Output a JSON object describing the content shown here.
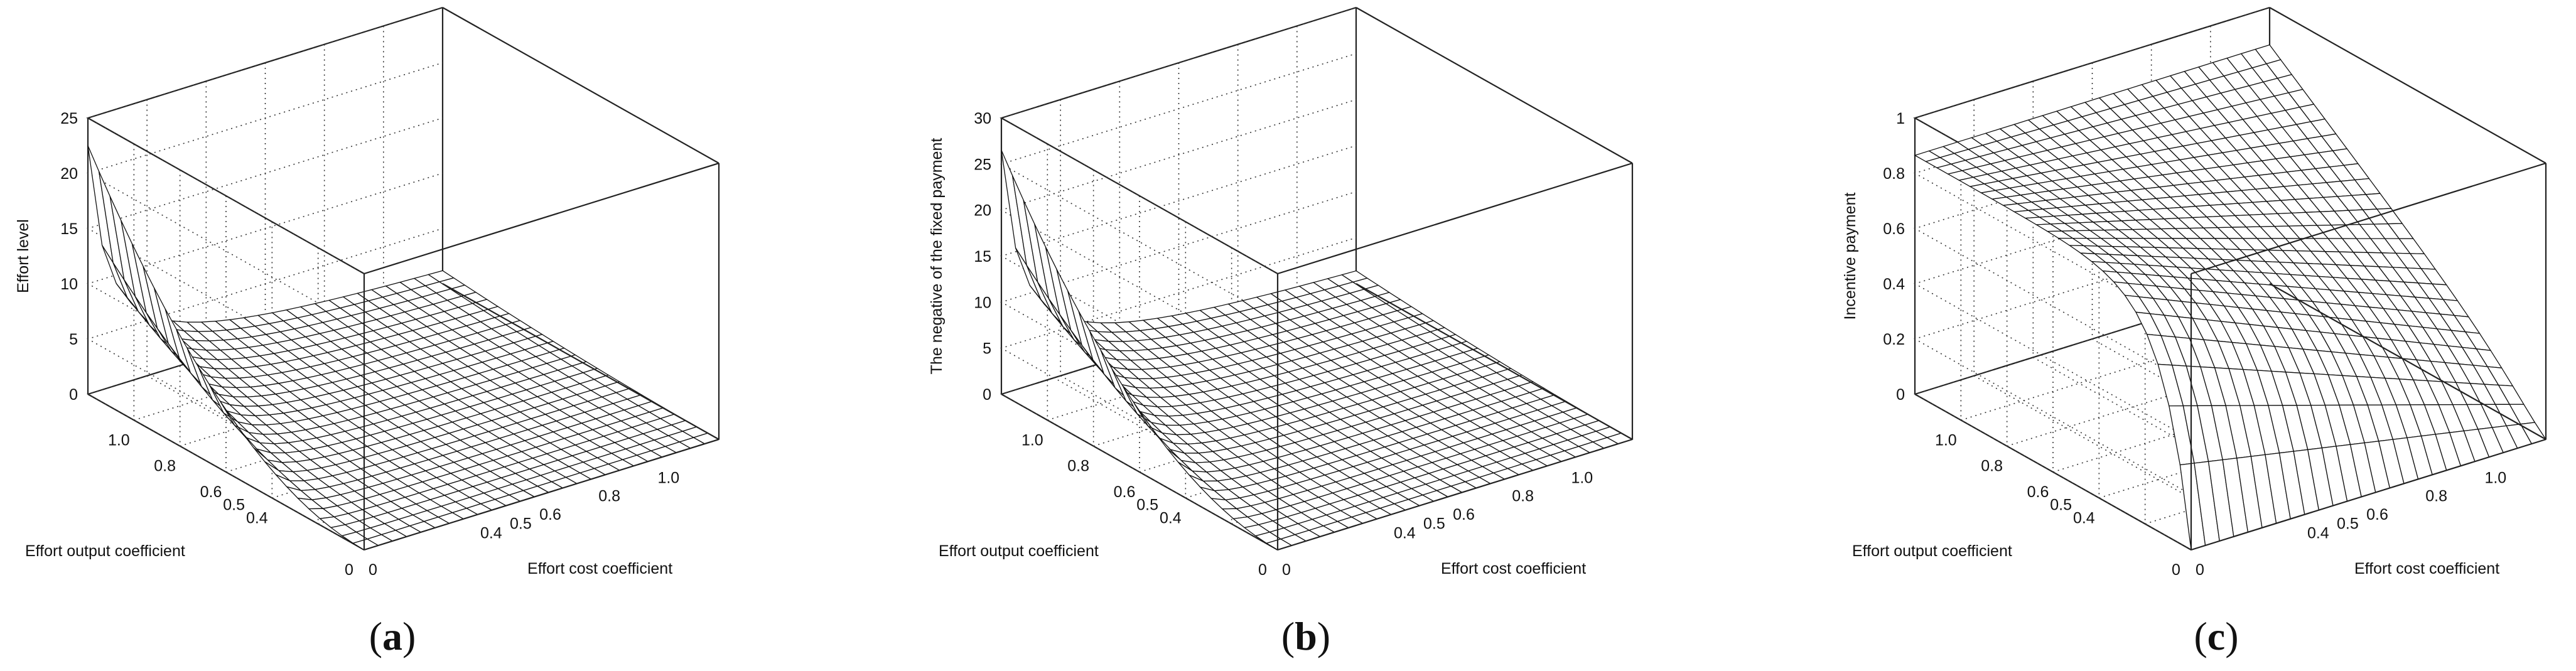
{
  "chart_data": [
    {
      "type": "surface",
      "panel": "a",
      "panel_label": {
        "open": "(",
        "letter": "a",
        "close": ")"
      },
      "xlabel": "Effort output coefficient",
      "ylabel": "Effort cost coefficient",
      "zlabel": "Effort level",
      "xlim": [
        0,
        1.2
      ],
      "ylim": [
        0,
        1.2
      ],
      "zlim": [
        0,
        25
      ],
      "x_ticks": [
        "0",
        "0.4",
        "0.5",
        "0.6",
        "0.8",
        "1.0"
      ],
      "y_ticks": [
        "0",
        "0.4",
        "0.5",
        "0.6",
        "0.8",
        "1.0"
      ],
      "z_ticks": [
        "0",
        "5",
        "10",
        "15",
        "20",
        "25"
      ],
      "grid": true,
      "surface_profile": "effort",
      "peak": 22.5
    },
    {
      "type": "surface",
      "panel": "b",
      "panel_label": {
        "open": "(",
        "letter": "b",
        "close": ")"
      },
      "xlabel": "Effort output coefficient",
      "ylabel": "Effort cost coefficient",
      "zlabel": "The negative of the fixed payment",
      "xlim": [
        0,
        1.2
      ],
      "ylim": [
        0,
        1.2
      ],
      "zlim": [
        0,
        30
      ],
      "x_ticks": [
        "0",
        "0.4",
        "0.5",
        "0.6",
        "0.8",
        "1.0"
      ],
      "y_ticks": [
        "0",
        "0.4",
        "0.5",
        "0.6",
        "0.8",
        "1.0"
      ],
      "z_ticks": [
        "0",
        "5",
        "10",
        "15",
        "20",
        "25",
        "30"
      ],
      "grid": true,
      "surface_profile": "fixed",
      "peak": 26.5
    },
    {
      "type": "surface",
      "panel": "c",
      "panel_label": {
        "open": "(",
        "letter": "c",
        "close": ")"
      },
      "xlabel": "Effort output coefficient",
      "ylabel": "Effort cost coefficient",
      "zlabel": "Incentive payment",
      "xlim": [
        0,
        1.2
      ],
      "ylim": [
        0,
        1.2
      ],
      "zlim": [
        0,
        1
      ],
      "x_ticks": [
        "0",
        "0.4",
        "0.5",
        "0.6",
        "0.8",
        "1.0"
      ],
      "y_ticks": [
        "0",
        "0.4",
        "0.5",
        "0.6",
        "0.8",
        "1.0"
      ],
      "z_ticks": [
        "0",
        "0.2",
        "0.4",
        "0.6",
        "0.8",
        "1"
      ],
      "grid": true,
      "surface_profile": "incentive",
      "peak": 0.93
    }
  ]
}
